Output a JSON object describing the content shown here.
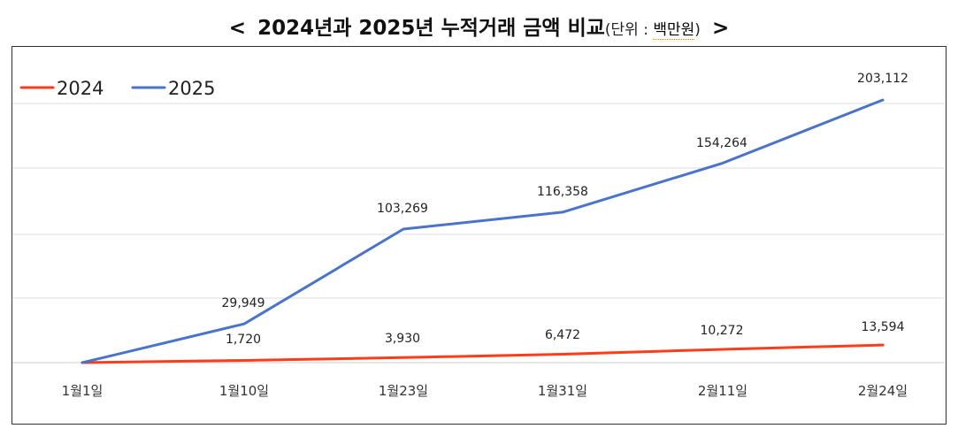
{
  "title": {
    "open_bracket": "<",
    "main": "2024년과 2025년 누적거래 금액 비교",
    "unit_prefix": "(단위 : ",
    "unit_value": "백만원",
    "unit_suffix": ")",
    "close_bracket": ">"
  },
  "chart_data": {
    "type": "line",
    "categories": [
      "1월1일",
      "1월10일",
      "1월23일",
      "1월31일",
      "2월11일",
      "2월24일"
    ],
    "series": [
      {
        "name": "2024",
        "color": "#ff3b1a",
        "values": [
          0,
          1720,
          3930,
          6472,
          10272,
          13594
        ],
        "labels": [
          null,
          "1,720",
          "3,930",
          "6,472",
          "10,272",
          "13,594"
        ]
      },
      {
        "name": "2025",
        "color": "#4a74c9",
        "values": [
          0,
          29949,
          103269,
          116358,
          154264,
          203112
        ],
        "labels": [
          null,
          "29,949",
          "103,269",
          "116,358",
          "154,264",
          "203,112"
        ]
      }
    ],
    "ylim": [
      0,
      203112
    ],
    "grid": true,
    "legend_position": "top-left"
  }
}
